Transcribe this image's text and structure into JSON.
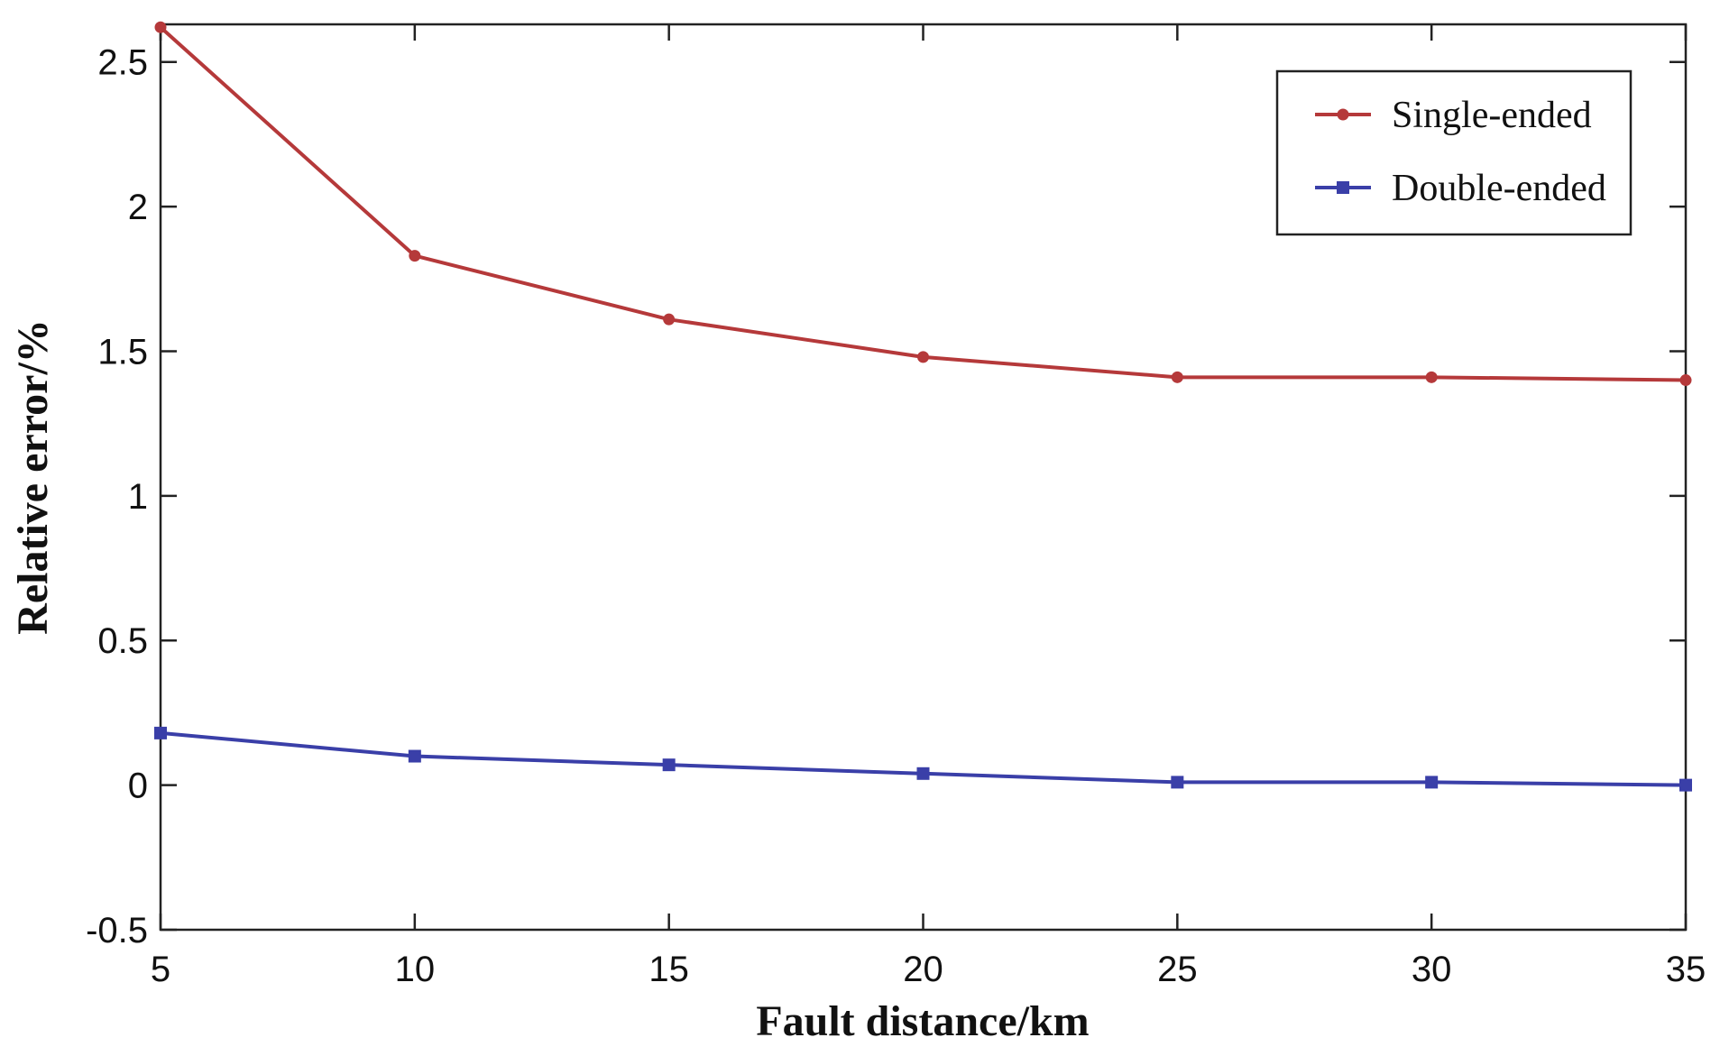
{
  "chart_data": {
    "type": "line",
    "title": "",
    "xlabel": "Fault distance/km",
    "ylabel": "Relative error/%",
    "x": [
      5,
      10,
      15,
      20,
      25,
      30,
      35
    ],
    "xlim": [
      5,
      35
    ],
    "ylim": [
      -0.5,
      2.63
    ],
    "xticks": [
      "5",
      "10",
      "15",
      "20",
      "25",
      "30",
      "35"
    ],
    "yticks": [
      "2.5",
      "2",
      "1.5",
      "1",
      "0.5",
      "0",
      "-0.5"
    ],
    "grid": false,
    "legend_position": "top-right",
    "series": [
      {
        "name": "Single-ended",
        "color": "#b5393a",
        "marker": "dot",
        "values": [
          2.62,
          1.83,
          1.61,
          1.48,
          1.41,
          1.41,
          1.4
        ]
      },
      {
        "name": "Double-ended",
        "color": "#3a3fa8",
        "marker": "square",
        "values": [
          0.18,
          0.1,
          0.07,
          0.04,
          0.01,
          0.01,
          0.0
        ]
      }
    ]
  }
}
